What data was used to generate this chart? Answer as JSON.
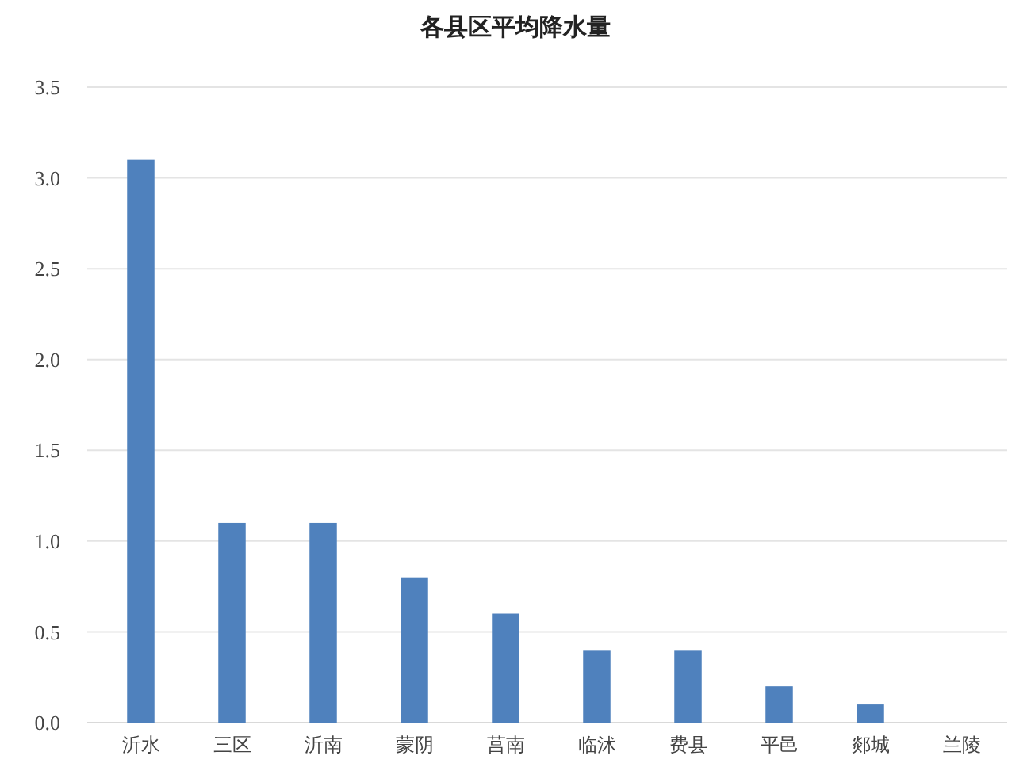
{
  "chart_data": {
    "type": "bar",
    "title": "各县区平均降水量",
    "categories": [
      "沂水",
      "三区",
      "沂南",
      "蒙阴",
      "莒南",
      "临沭",
      "费县",
      "平邑",
      "郯城",
      "兰陵"
    ],
    "values": [
      3.1,
      1.1,
      1.1,
      0.8,
      0.6,
      0.4,
      0.4,
      0.2,
      0.1,
      0
    ],
    "color": "#4f81bd",
    "ylim": [
      0,
      3.5
    ],
    "yticks": [
      {
        "value": 0,
        "label": "0.0"
      },
      {
        "value": 0.5,
        "label": "0.5"
      },
      {
        "value": 1,
        "label": "1.0"
      },
      {
        "value": 1.5,
        "label": "1.5"
      },
      {
        "value": 2,
        "label": "2.0"
      },
      {
        "value": 2.5,
        "label": "2.5"
      },
      {
        "value": 3,
        "label": "3.0"
      },
      {
        "value": 3.5,
        "label": "3.5"
      }
    ],
    "grid": "y"
  }
}
